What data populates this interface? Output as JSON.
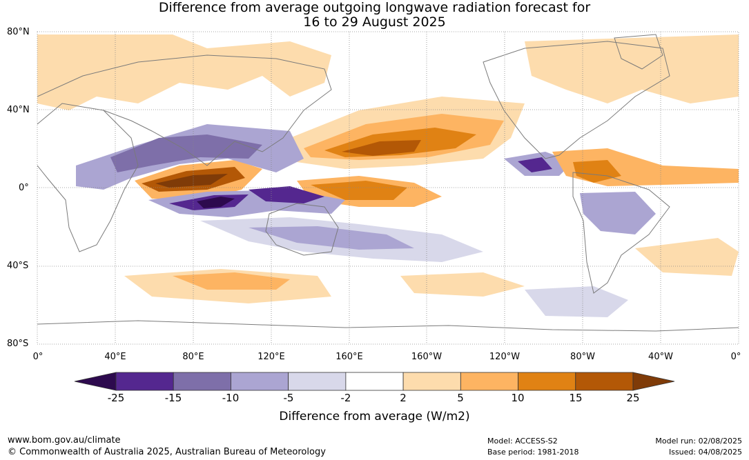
{
  "title": {
    "line1": "Difference from average outgoing longwave radiation forecast for",
    "line2": "16 to 29 August 2025"
  },
  "map": {
    "lat_labels": [
      "80°N",
      "40°N",
      "0°",
      "40°S",
      "80°S"
    ],
    "lon_labels": [
      "0°",
      "40°E",
      "80°E",
      "120°E",
      "160°E",
      "160°W",
      "120°W",
      "80°W",
      "40°W",
      "0°"
    ],
    "land_outline_color": "#7a7a7a",
    "grid_color": "#888888"
  },
  "colorbar": {
    "label": "Difference from average (W/m2)",
    "ticks": [
      "-25",
      "-15",
      "-10",
      "-5",
      "-2",
      "2",
      "5",
      "10",
      "15",
      "25"
    ],
    "colors": [
      "#2d0a4e",
      "#54278f",
      "#7e6fa9",
      "#aba5d2",
      "#d8d8ea",
      "#ffffff",
      "#fddcad",
      "#fdb462",
      "#e08214",
      "#b35806",
      "#7f3b08"
    ]
  },
  "footer": {
    "url": "www.bom.gov.au/climate",
    "copyright": "© Commonwealth of Australia 2025, Australian Bureau of Meteorology",
    "model": "Model: ACCESS-S2",
    "base_period": "Base period: 1981-2018",
    "model_run": "Model run: 02/08/2025",
    "issued": "Issued: 04/08/2025"
  }
}
